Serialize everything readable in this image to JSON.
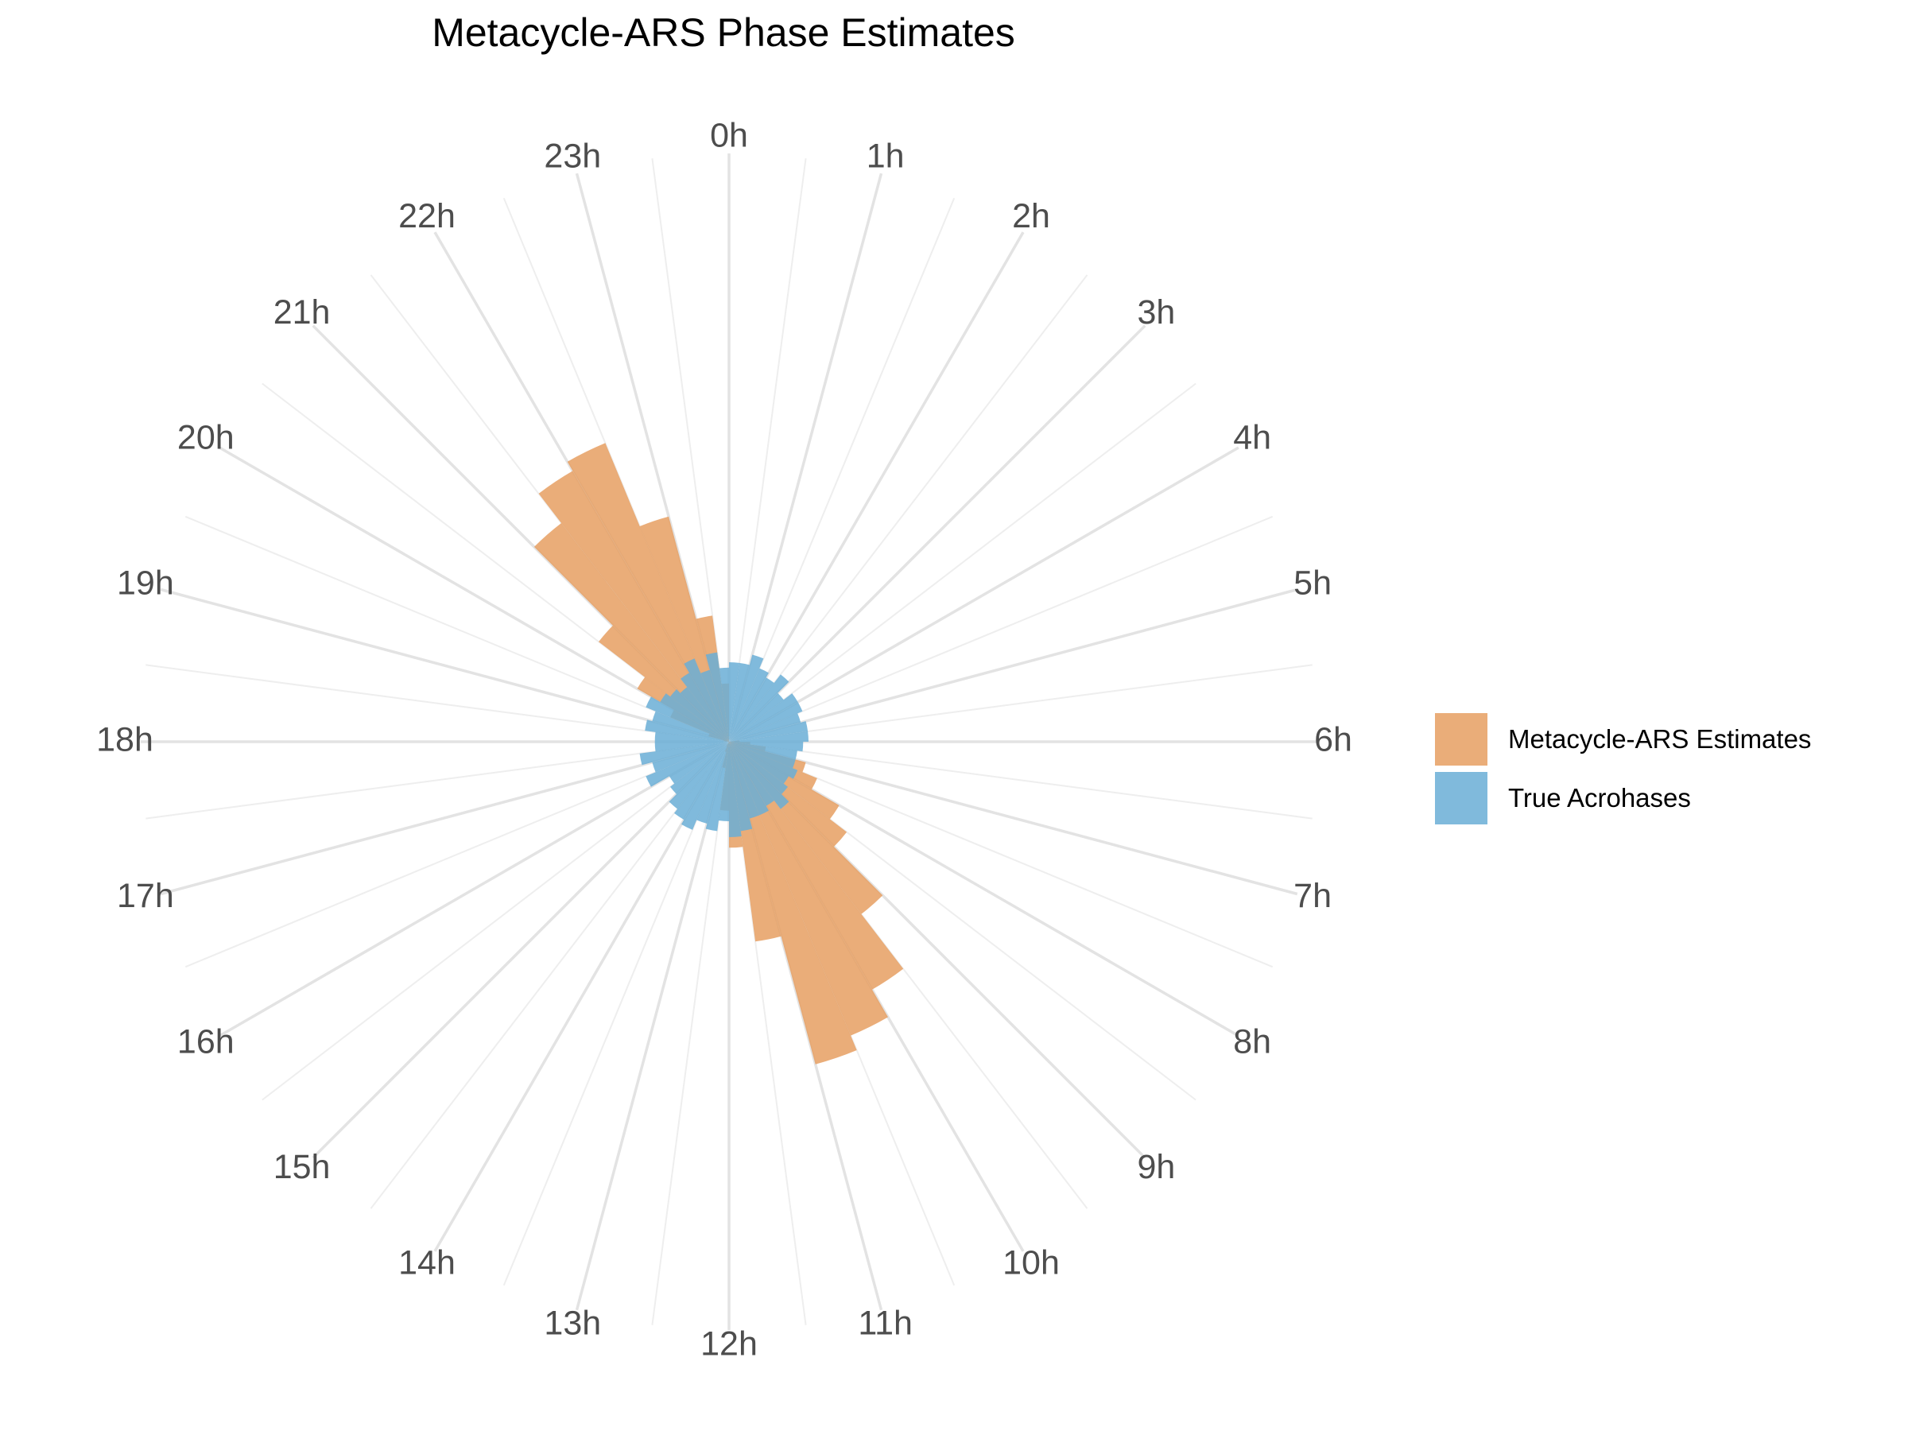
{
  "chart_data": {
    "type": "polar-histogram",
    "title": "Metacycle-ARS Phase Estimates",
    "theta_unit": "h",
    "theta_ticks": [
      "0h",
      "1h",
      "2h",
      "3h",
      "4h",
      "5h",
      "6h",
      "7h",
      "8h",
      "9h",
      "10h",
      "11h",
      "12h",
      "13h",
      "14h",
      "15h",
      "16h",
      "17h",
      "18h",
      "19h",
      "20h",
      "21h",
      "22h",
      "23h"
    ],
    "bin_width_hours": 0.5,
    "bin_starts_hours": [
      0,
      0.5,
      1,
      1.5,
      2,
      2.5,
      3,
      3.5,
      4,
      4.5,
      5,
      5.5,
      6,
      6.5,
      7,
      7.5,
      8,
      8.5,
      9,
      9.5,
      10,
      10.5,
      11,
      11.5,
      12,
      12.5,
      13,
      13.5,
      14,
      14.5,
      15,
      15.5,
      16,
      16.5,
      17,
      17.5,
      18,
      18.5,
      19,
      19.5,
      20,
      20.5,
      21,
      21.5,
      22,
      22.5,
      23,
      23.5
    ],
    "radial_range": [
      0,
      105
    ],
    "series": [
      {
        "name": "Metacycle-ARS Estimates",
        "color": "#E69F62",
        "opacity": 0.85,
        "values": [
          0,
          0,
          0,
          0,
          0,
          0,
          0,
          0,
          0,
          0,
          0,
          2,
          4,
          7,
          15,
          18,
          24,
          28,
          41,
          54,
          60,
          63,
          38,
          20,
          13,
          5,
          2,
          1,
          0,
          0,
          0,
          0,
          0,
          0,
          0,
          0,
          0,
          1,
          4,
          12,
          20,
          31,
          52,
          59,
          61,
          44,
          24,
          11
        ]
      },
      {
        "name": "True Acrohases",
        "color": "#6AAED6",
        "opacity": 0.85,
        "values": [
          15,
          15,
          17,
          15,
          14,
          16,
          13,
          15,
          15,
          14,
          15,
          15,
          14,
          13,
          13,
          14,
          13,
          14,
          16,
          14,
          15,
          15,
          17,
          18,
          15,
          17,
          16,
          18,
          17,
          16,
          14,
          13,
          17,
          15,
          17,
          14,
          14,
          16,
          15,
          17,
          15,
          14,
          13,
          15,
          17,
          14,
          17,
          14
        ]
      }
    ],
    "legend": {
      "position": "right",
      "items": [
        "Metacycle-ARS Estimates",
        "True Acrohases"
      ]
    },
    "grid": true
  }
}
